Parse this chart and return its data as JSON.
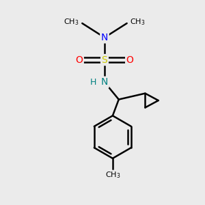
{
  "bg_color": "#ebebeb",
  "atom_colors": {
    "N": "#0000ff",
    "N2": "#008080",
    "S": "#cccc00",
    "O": "#ff0000",
    "C": "#000000",
    "H": "#808080"
  },
  "bond_color": "#000000",
  "bond_width": 1.8,
  "label_fontsize": 10,
  "label_fontsize_small": 9
}
